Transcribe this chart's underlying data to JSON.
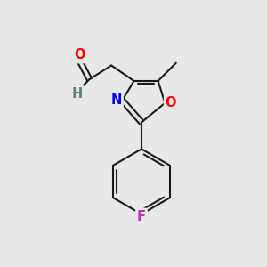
{
  "background_color": "#e8e8e8",
  "bond_color": "#1a1a1a",
  "atom_colors": {
    "O": "#ff0000",
    "H": "#5a8080",
    "N": "#0000ee",
    "O_ring": "#ff0000",
    "F": "#bb33bb"
  },
  "figsize": [
    3.0,
    3.0
  ],
  "dpi": 100
}
